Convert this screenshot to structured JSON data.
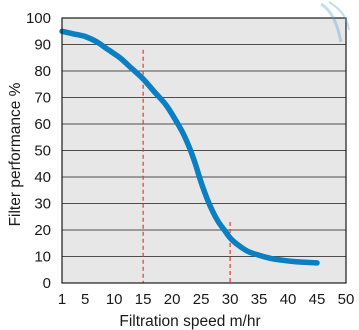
{
  "chart_data": {
    "type": "line",
    "xlabel": "Filtration speed m/hr",
    "ylabel": "Filter performance %",
    "xlim": [
      1,
      50
    ],
    "ylim": [
      0,
      100
    ],
    "x_ticks": [
      "1",
      "5",
      "10",
      "15",
      "20",
      "25",
      "30",
      "35",
      "40",
      "45",
      "50"
    ],
    "y_ticks": [
      "0",
      "10",
      "20",
      "30",
      "40",
      "50",
      "60",
      "70",
      "80",
      "90",
      "100"
    ],
    "grid": "horizontal",
    "legend": "none",
    "series": [
      {
        "color": "#0a7fc2",
        "points": [
          [
            1,
            95
          ],
          [
            3,
            94
          ],
          [
            5,
            93
          ],
          [
            7,
            91
          ],
          [
            9,
            88
          ],
          [
            11,
            85
          ],
          [
            13,
            81
          ],
          [
            15,
            77
          ],
          [
            17,
            72
          ],
          [
            19,
            67
          ],
          [
            21,
            60
          ],
          [
            22,
            56
          ],
          [
            23,
            51
          ],
          [
            24,
            45
          ],
          [
            25,
            38
          ],
          [
            26,
            32
          ],
          [
            27,
            27
          ],
          [
            28,
            23
          ],
          [
            29,
            20
          ],
          [
            30,
            17
          ],
          [
            31,
            15
          ],
          [
            33,
            12
          ],
          [
            35,
            10.5
          ],
          [
            37,
            9.3
          ],
          [
            39,
            8.6
          ],
          [
            41,
            8.1
          ],
          [
            43,
            7.8
          ],
          [
            45,
            7.6
          ]
        ]
      }
    ],
    "reference_lines": [
      {
        "x": 15,
        "color": "#e03c31"
      },
      {
        "x": 30,
        "color": "#e03c31"
      }
    ]
  },
  "colors": {
    "plot_background": "#e7e7e7",
    "grid": "#1a1a1a",
    "axis": "#1a1a1a",
    "watermark": "#5aa0d0"
  }
}
